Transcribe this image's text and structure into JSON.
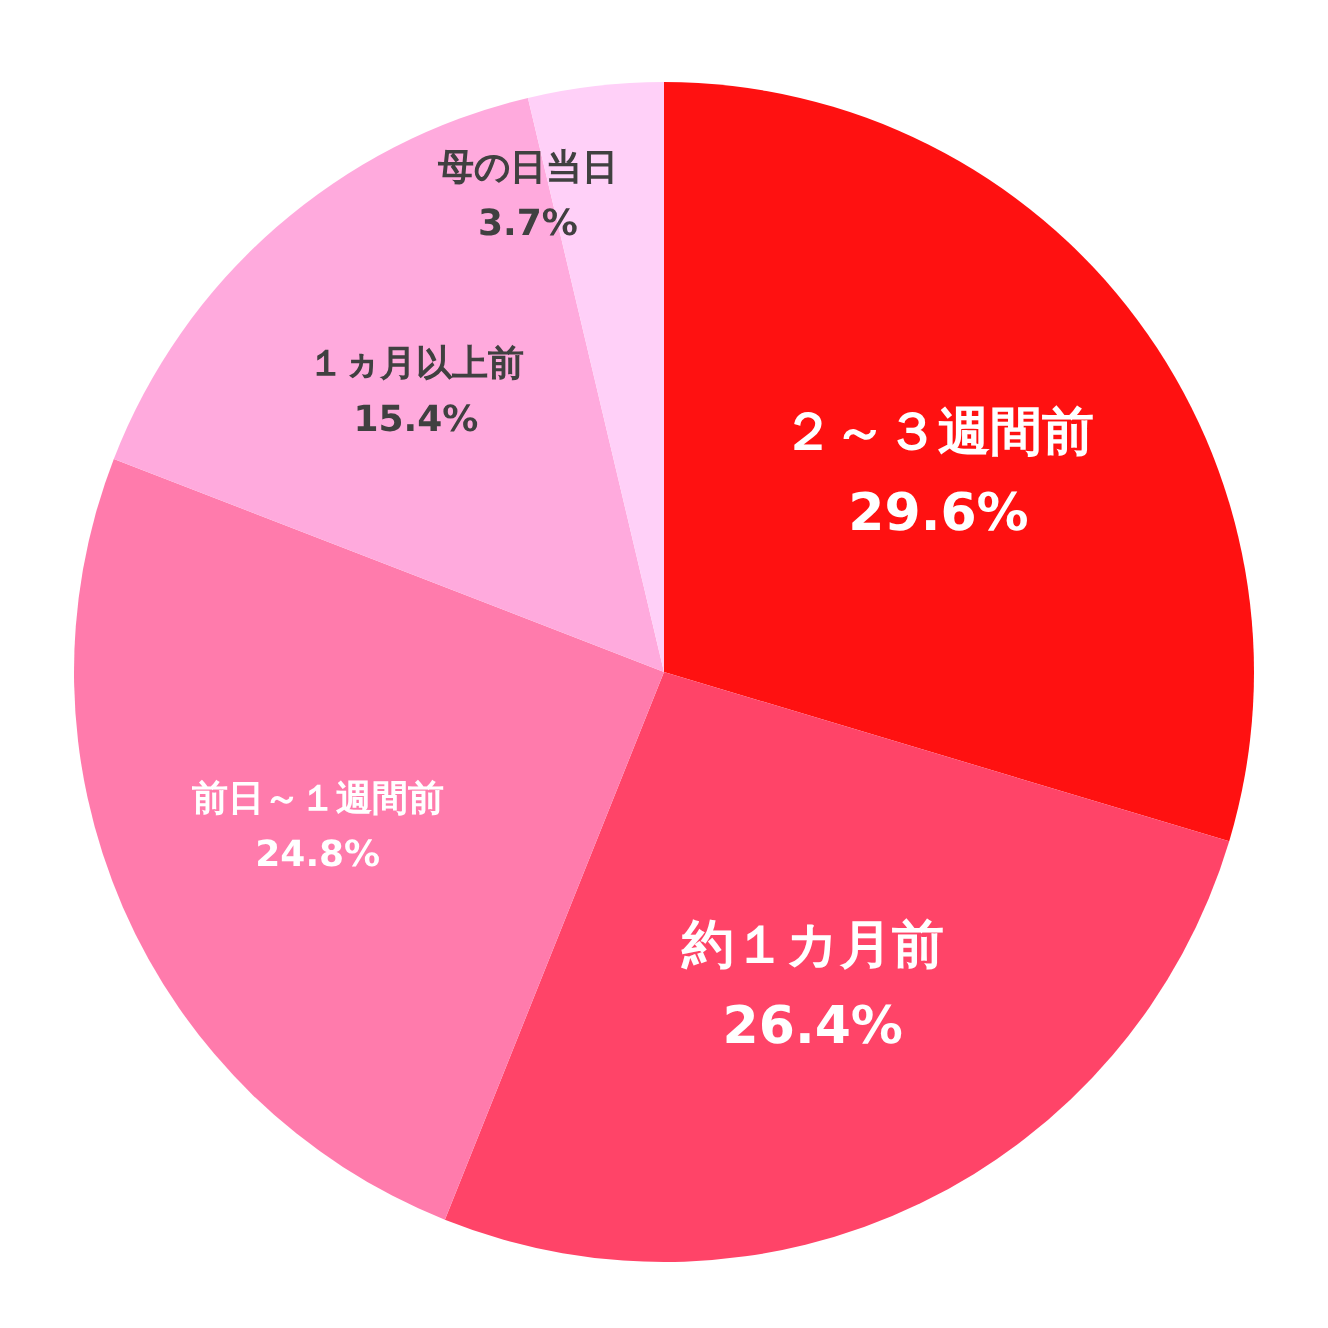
{
  "chart_data": {
    "type": "pie",
    "categories": [
      "２～３週間前",
      "約１カ月前",
      "前日～１週間前",
      "１ヵ月以上前",
      "母の日当日"
    ],
    "values": [
      29.6,
      26.4,
      24.8,
      15.4,
      3.7
    ],
    "value_labels": [
      "29.6%",
      "26.4%",
      "24.8%",
      "15.4%",
      "3.7%"
    ],
    "colors": [
      "#ff1111",
      "#ff4468",
      "#ff7bac",
      "#ffaadd",
      "#ffd0f8"
    ]
  }
}
